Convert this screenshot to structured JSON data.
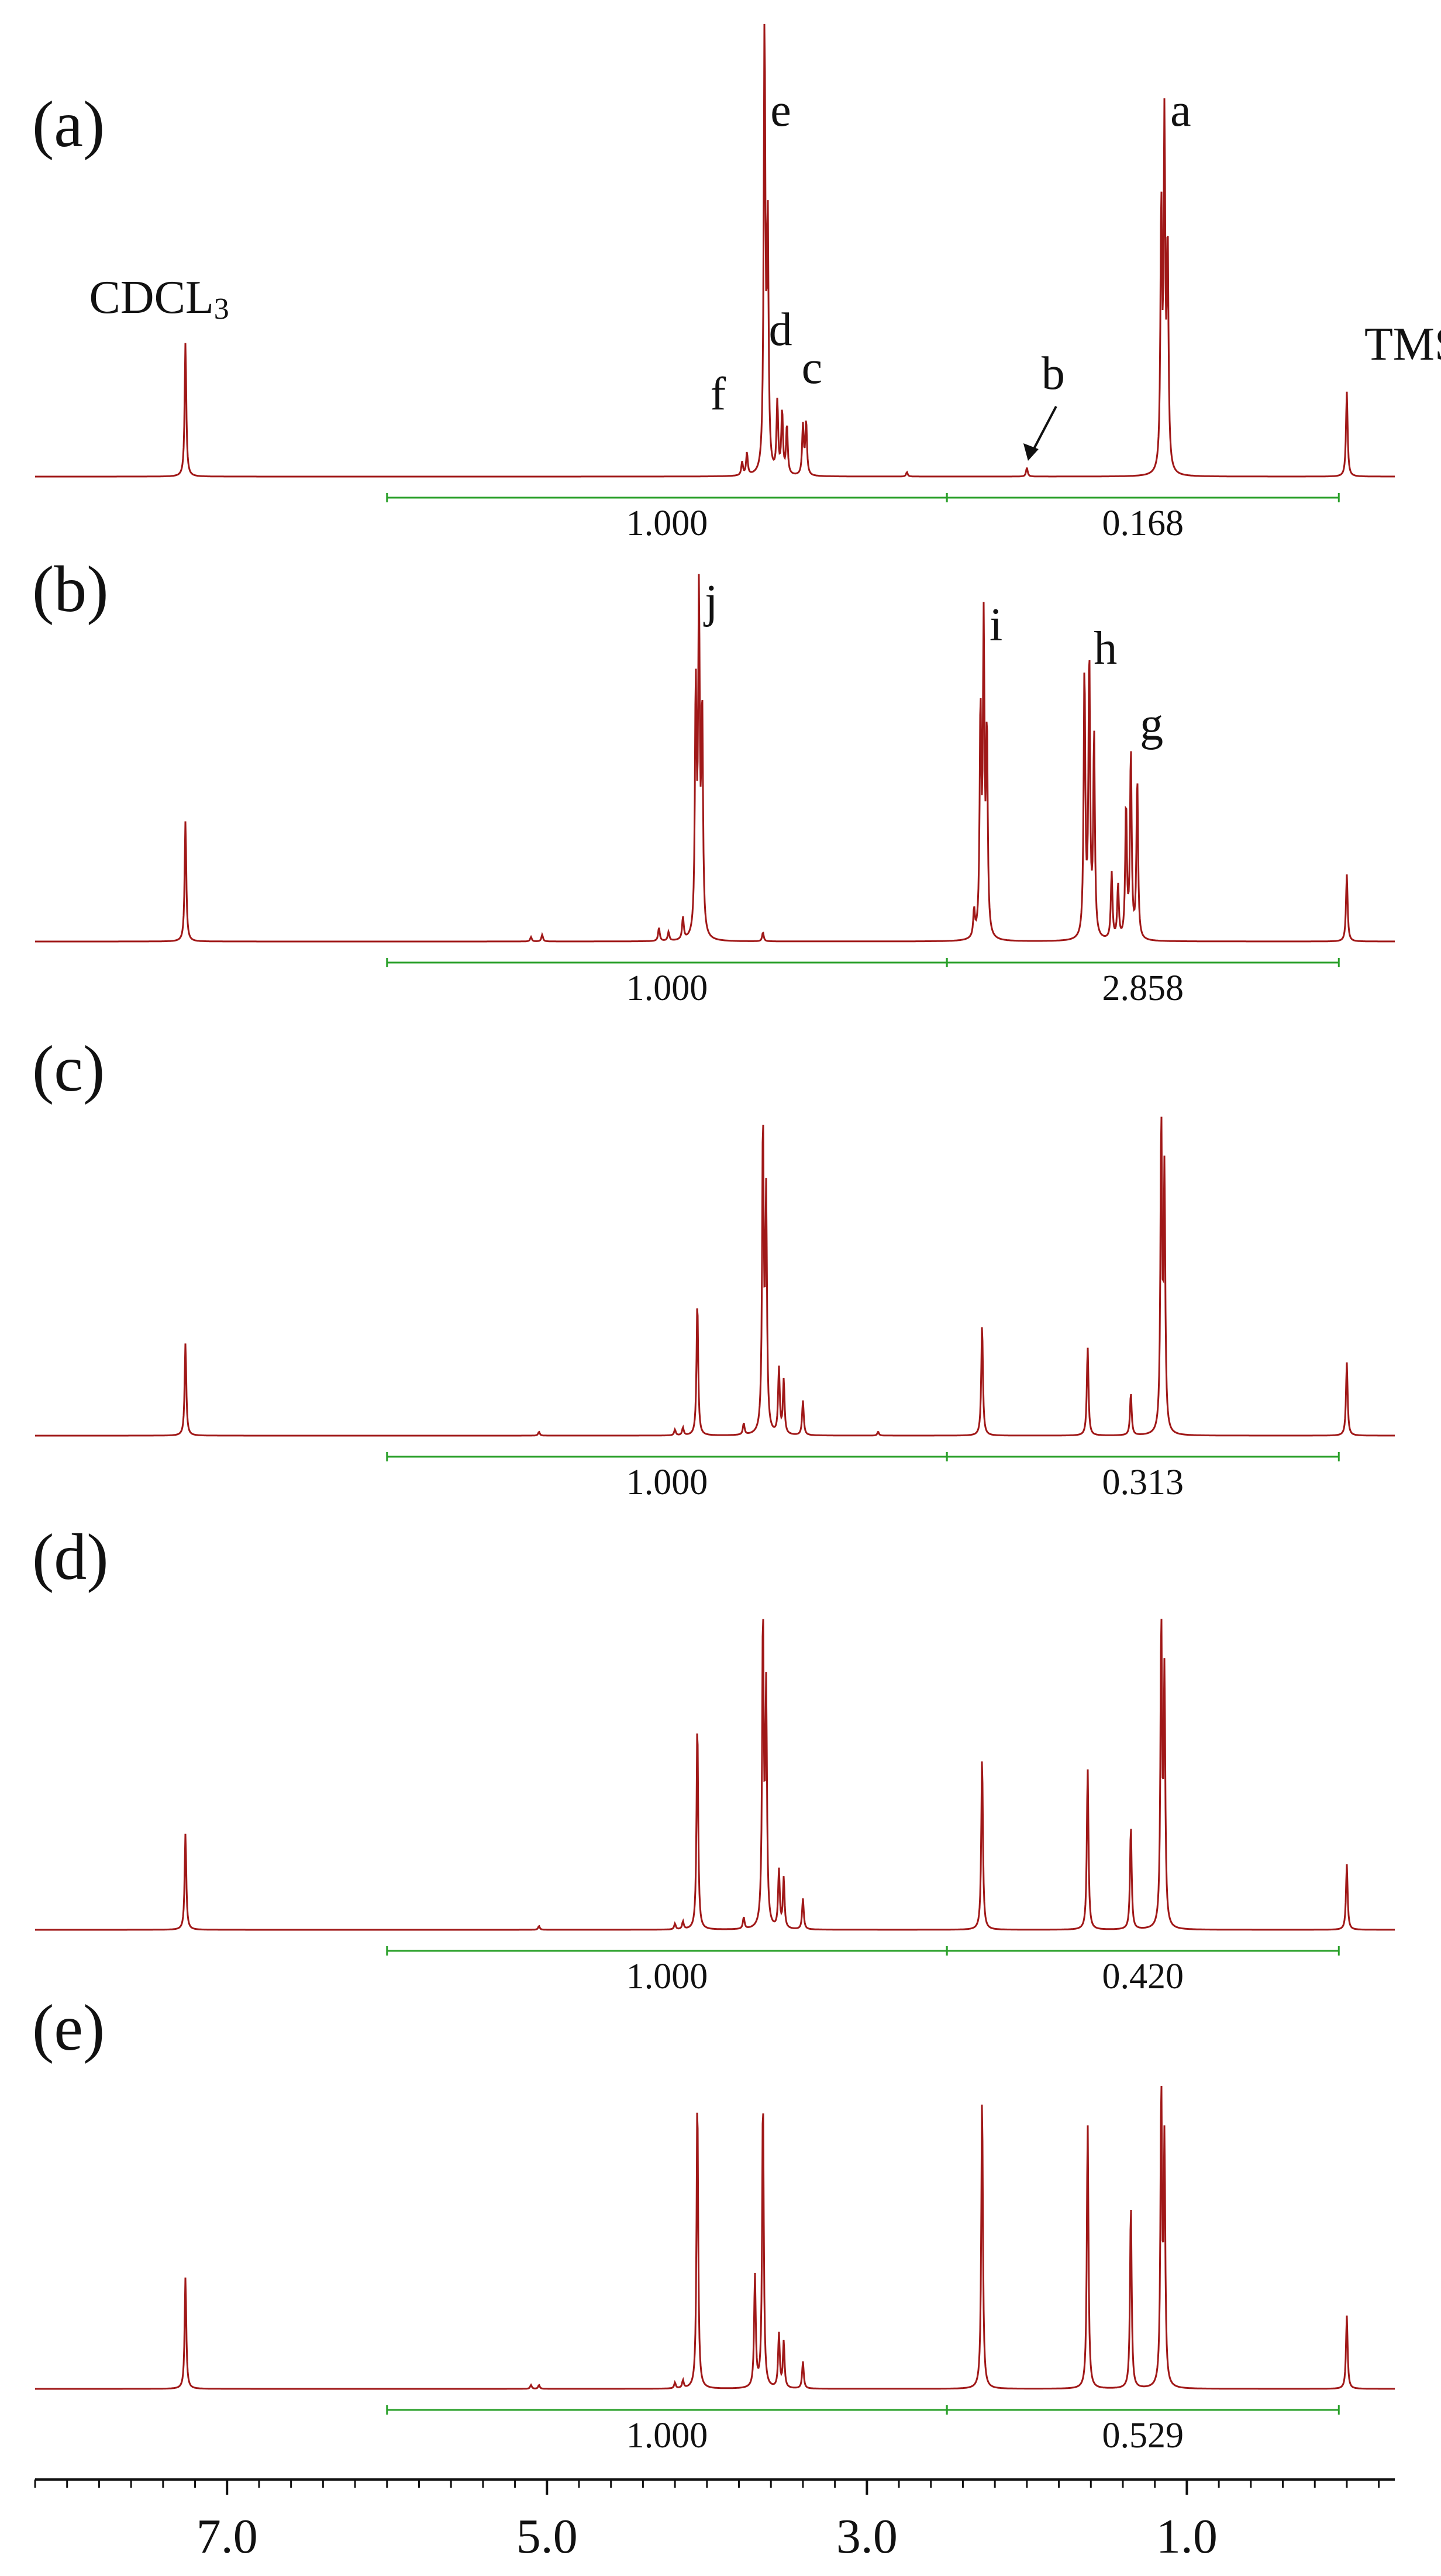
{
  "chart_data": {
    "type": "line",
    "description_free": true,
    "x_axis": {
      "label": "",
      "reversed": true,
      "range": [
        8.2,
        -0.3
      ],
      "ticks": [
        7.0,
        5.0,
        3.0,
        1.0
      ],
      "tick_labels": [
        "7.0",
        "5.0",
        "3.0",
        "1.0"
      ],
      "minor_tick_step": 0.2
    },
    "grid": false,
    "legend": "none",
    "spectrum_color": "#a01818",
    "integral_color": "#2aa02a",
    "panels": [
      {
        "label": "(a)",
        "peak_annotations": [
          {
            "text": "CDCL",
            "subscript": "3",
            "ppm": 7.26
          },
          {
            "text": "f",
            "ppm": 3.76
          },
          {
            "text": "e",
            "ppm": 3.64
          },
          {
            "text": "d",
            "ppm": 3.54
          },
          {
            "text": "c",
            "ppm": 3.39
          },
          {
            "text": "b",
            "ppm": 2.0,
            "arrow": true
          },
          {
            "text": "a",
            "ppm": 1.14
          },
          {
            "text": "TMS",
            "ppm": 0.0
          }
        ],
        "peaks": [
          {
            "ppm": 7.26,
            "height": 0.3
          },
          {
            "ppm": 3.78,
            "height": 0.03
          },
          {
            "ppm": 3.75,
            "height": 0.05
          },
          {
            "ppm": 3.64,
            "height": 1.0
          },
          {
            "ppm": 3.62,
            "height": 0.55
          },
          {
            "ppm": 3.56,
            "height": 0.16
          },
          {
            "ppm": 3.53,
            "height": 0.14
          },
          {
            "ppm": 3.5,
            "height": 0.11
          },
          {
            "ppm": 3.4,
            "height": 0.11
          },
          {
            "ppm": 3.38,
            "height": 0.12
          },
          {
            "ppm": 2.75,
            "height": 0.01
          },
          {
            "ppm": 2.0,
            "height": 0.02
          },
          {
            "ppm": 1.16,
            "height": 0.58
          },
          {
            "ppm": 1.14,
            "height": 0.76
          },
          {
            "ppm": 1.12,
            "height": 0.5
          },
          {
            "ppm": 0.0,
            "height": 0.19
          }
        ],
        "integrals": [
          {
            "from": 6.0,
            "to": 2.5,
            "value": "1.000"
          },
          {
            "from": 2.5,
            "to": 0.05,
            "value": "0.168"
          }
        ]
      },
      {
        "label": "(b)",
        "peak_annotations": [
          {
            "text": "j",
            "ppm": 4.05
          },
          {
            "text": "i",
            "ppm": 2.27
          },
          {
            "text": "h",
            "ppm": 1.6
          },
          {
            "text": "g",
            "ppm": 1.33
          }
        ],
        "peaks": [
          {
            "ppm": 7.26,
            "height": 0.27
          },
          {
            "ppm": 5.1,
            "height": 0.01
          },
          {
            "ppm": 5.03,
            "height": 0.015
          },
          {
            "ppm": 4.3,
            "height": 0.03
          },
          {
            "ppm": 4.24,
            "height": 0.02
          },
          {
            "ppm": 4.15,
            "height": 0.05
          },
          {
            "ppm": 4.07,
            "height": 0.55
          },
          {
            "ppm": 4.05,
            "height": 0.74
          },
          {
            "ppm": 4.03,
            "height": 0.5
          },
          {
            "ppm": 3.65,
            "height": 0.02
          },
          {
            "ppm": 2.33,
            "height": 0.06
          },
          {
            "ppm": 2.29,
            "height": 0.5
          },
          {
            "ppm": 2.27,
            "height": 0.68
          },
          {
            "ppm": 2.25,
            "height": 0.45
          },
          {
            "ppm": 1.64,
            "height": 0.6
          },
          {
            "ppm": 1.61,
            "height": 0.63
          },
          {
            "ppm": 1.58,
            "height": 0.45
          },
          {
            "ppm": 1.47,
            "height": 0.15
          },
          {
            "ppm": 1.43,
            "height": 0.12
          },
          {
            "ppm": 1.38,
            "height": 0.3
          },
          {
            "ppm": 1.35,
            "height": 0.42
          },
          {
            "ppm": 1.31,
            "height": 0.36
          },
          {
            "ppm": 0.0,
            "height": 0.15
          }
        ],
        "integrals": [
          {
            "from": 6.0,
            "to": 2.5,
            "value": "1.000"
          },
          {
            "from": 2.5,
            "to": 0.05,
            "value": "2.858"
          }
        ]
      },
      {
        "label": "(c)",
        "peak_annotations": [],
        "peaks": [
          {
            "ppm": 7.26,
            "height": 0.24
          },
          {
            "ppm": 5.05,
            "height": 0.01
          },
          {
            "ppm": 4.2,
            "height": 0.015
          },
          {
            "ppm": 4.15,
            "height": 0.02
          },
          {
            "ppm": 4.06,
            "height": 0.35
          },
          {
            "ppm": 3.77,
            "height": 0.03
          },
          {
            "ppm": 3.65,
            "height": 0.8
          },
          {
            "ppm": 3.63,
            "height": 0.6
          },
          {
            "ppm": 3.55,
            "height": 0.17
          },
          {
            "ppm": 3.52,
            "height": 0.14
          },
          {
            "ppm": 3.4,
            "height": 0.09
          },
          {
            "ppm": 2.93,
            "height": 0.01
          },
          {
            "ppm": 2.28,
            "height": 0.29
          },
          {
            "ppm": 1.62,
            "height": 0.23
          },
          {
            "ppm": 1.35,
            "height": 0.11
          },
          {
            "ppm": 1.16,
            "height": 0.8
          },
          {
            "ppm": 1.14,
            "height": 0.66
          },
          {
            "ppm": 0.0,
            "height": 0.19
          }
        ],
        "integrals": [
          {
            "from": 6.0,
            "to": 2.5,
            "value": "1.000"
          },
          {
            "from": 2.5,
            "to": 0.05,
            "value": "0.313"
          }
        ]
      },
      {
        "label": "(d)",
        "peak_annotations": [],
        "peaks": [
          {
            "ppm": 7.26,
            "height": 0.25
          },
          {
            "ppm": 5.05,
            "height": 0.01
          },
          {
            "ppm": 4.2,
            "height": 0.015
          },
          {
            "ppm": 4.15,
            "height": 0.02
          },
          {
            "ppm": 4.06,
            "height": 0.54
          },
          {
            "ppm": 3.77,
            "height": 0.03
          },
          {
            "ppm": 3.65,
            "height": 0.8
          },
          {
            "ppm": 3.63,
            "height": 0.6
          },
          {
            "ppm": 3.55,
            "height": 0.15
          },
          {
            "ppm": 3.52,
            "height": 0.13
          },
          {
            "ppm": 3.4,
            "height": 0.08
          },
          {
            "ppm": 2.28,
            "height": 0.45
          },
          {
            "ppm": 1.62,
            "height": 0.42
          },
          {
            "ppm": 1.35,
            "height": 0.27
          },
          {
            "ppm": 1.16,
            "height": 0.78
          },
          {
            "ppm": 1.14,
            "height": 0.64
          },
          {
            "ppm": 0.0,
            "height": 0.17
          }
        ],
        "integrals": [
          {
            "from": 6.0,
            "to": 2.5,
            "value": "1.000"
          },
          {
            "from": 2.5,
            "to": 0.05,
            "value": "0.420"
          }
        ]
      },
      {
        "label": "(e)",
        "peak_annotations": [],
        "peaks": [
          {
            "ppm": 7.26,
            "height": 0.29
          },
          {
            "ppm": 5.1,
            "height": 0.01
          },
          {
            "ppm": 5.05,
            "height": 0.01
          },
          {
            "ppm": 4.2,
            "height": 0.015
          },
          {
            "ppm": 4.15,
            "height": 0.02
          },
          {
            "ppm": 4.06,
            "height": 0.76
          },
          {
            "ppm": 3.7,
            "height": 0.29
          },
          {
            "ppm": 3.65,
            "height": 0.76
          },
          {
            "ppm": 3.55,
            "height": 0.14
          },
          {
            "ppm": 3.52,
            "height": 0.12
          },
          {
            "ppm": 3.4,
            "height": 0.07
          },
          {
            "ppm": 2.28,
            "height": 0.76
          },
          {
            "ppm": 1.62,
            "height": 0.69
          },
          {
            "ppm": 1.35,
            "height": 0.48
          },
          {
            "ppm": 1.16,
            "height": 0.76
          },
          {
            "ppm": 1.14,
            "height": 0.62
          },
          {
            "ppm": 0.0,
            "height": 0.19
          }
        ],
        "integrals": [
          {
            "from": 6.0,
            "to": 2.5,
            "value": "1.000"
          },
          {
            "from": 2.5,
            "to": 0.05,
            "value": "0.529"
          }
        ]
      }
    ]
  }
}
